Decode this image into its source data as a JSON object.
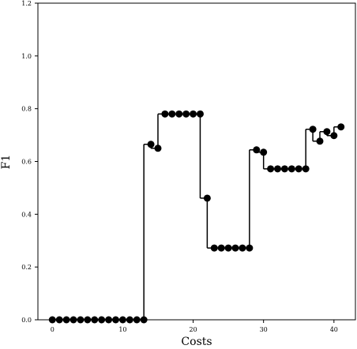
{
  "chart_data": {
    "type": "step",
    "x_label": "Costs",
    "y_label": "F1",
    "x": [
      0,
      1,
      2,
      3,
      4,
      5,
      6,
      7,
      8,
      9,
      10,
      11,
      12,
      13,
      14,
      15,
      16,
      17,
      18,
      19,
      20,
      21,
      22,
      23,
      24,
      25,
      26,
      27,
      28,
      29,
      30,
      31,
      32,
      33,
      34,
      35,
      36,
      37,
      38,
      39,
      40,
      41
    ],
    "series": [
      {
        "color": "#000000",
        "values": [
          0,
          0,
          0,
          0,
          0,
          0,
          0,
          0,
          0,
          0,
          0,
          0,
          0,
          0,
          0.665,
          0.65,
          0.78,
          0.78,
          0.78,
          0.78,
          0.78,
          0.78,
          0.461,
          0.272,
          0.272,
          0.272,
          0.272,
          0.272,
          0.272,
          0.644,
          0.635,
          0.572,
          0.572,
          0.572,
          0.572,
          0.572,
          0.572,
          0.722,
          0.677,
          0.713,
          0.698,
          0.731
        ]
      }
    ],
    "xlim": [
      -2.05,
      43.05
    ],
    "xticks": [
      0,
      10,
      20,
      30,
      40
    ],
    "ylim": [
      0,
      1.2
    ],
    "yticks": [
      {
        "value": 0,
        "label": "0.0"
      },
      0.2,
      0.4,
      0.6,
      0.8,
      {
        "value": 1,
        "label": "1.0"
      },
      1.2
    ]
  }
}
